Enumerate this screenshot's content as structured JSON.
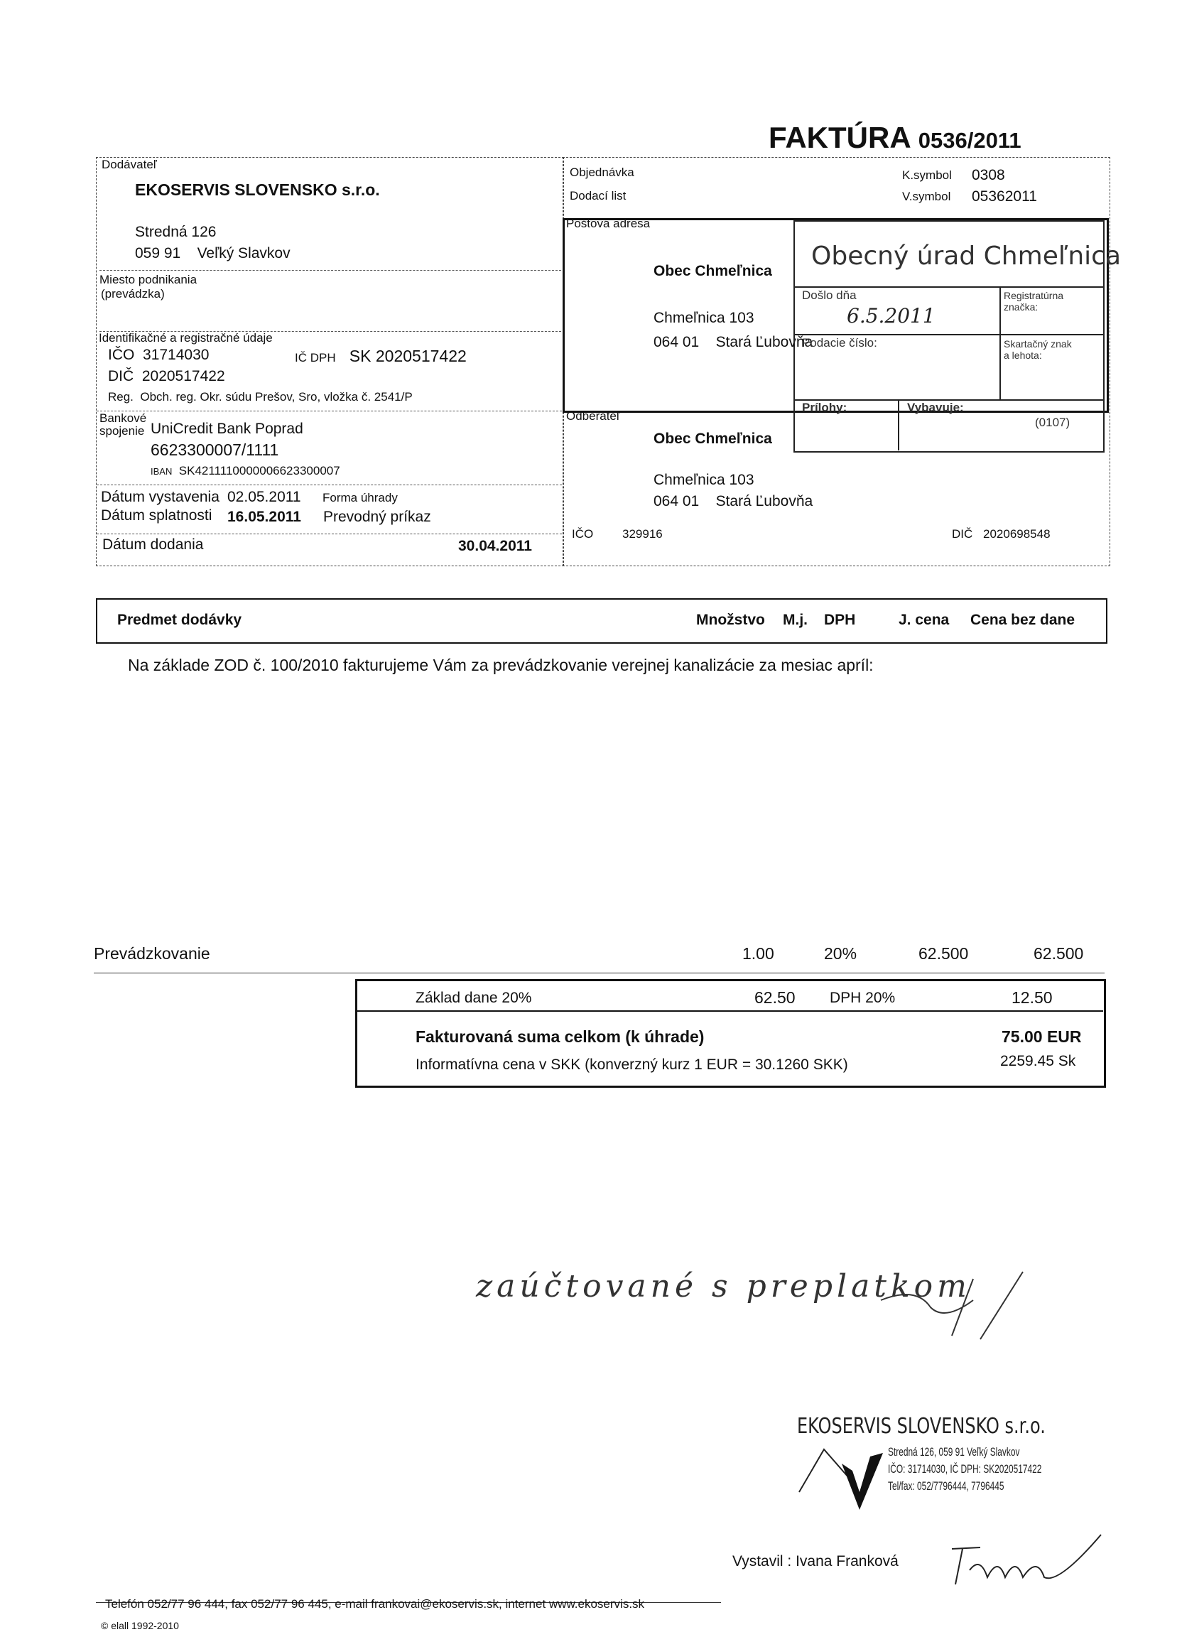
{
  "title": {
    "label": "FAKTÚRA",
    "number": "0536/2011"
  },
  "supplier": {
    "heading": "Dodávateľ",
    "name": "EKOSERVIS SLOVENSKO s.r.o.",
    "street": "Stredná 126",
    "zip": "059 91",
    "city": "Veľký Slavkov",
    "place_label1": "Miesto podnikania",
    "place_label2": "(prevádzka)",
    "id_heading": "Identifikačné a registračné údaje",
    "ico_label": "IČO",
    "ico": "31714030",
    "icdph_label": "IČ DPH",
    "icdph": "SK 2020517422",
    "dic_label": "DIČ",
    "dic": "2020517422",
    "reg_label": "Reg.",
    "reg": "Obch. reg. Okr. súdu Prešov, Sro, vložka č. 2541/P",
    "bank_label1": "Bankové",
    "bank_label2": "spojenie",
    "bank": "UniCredit Bank Poprad",
    "account": "6623300007/1111",
    "iban_label": "IBAN",
    "iban": "SK4211110000006623300007"
  },
  "dates": {
    "issue_label": "Dátum vystavenia",
    "issue": "02.05.2011",
    "due_label": "Dátum splatnosti",
    "due": "16.05.2011",
    "payment_label": "Forma úhrady",
    "payment": "Prevodný príkaz",
    "delivery_label": "Dátum dodania",
    "delivery": "30.04.2011"
  },
  "order": {
    "order_label": "Objednávka",
    "delivery_note_label": "Dodací list",
    "ksymbol_label": "K.symbol",
    "ksymbol": "0308",
    "vsymbol_label": "V.symbol",
    "vsymbol": "05362011"
  },
  "postal": {
    "heading": "Poštová adresa",
    "name": "Obec Chmeľnica",
    "street": "Chmeľnica 103",
    "zip": "064 01",
    "city": "Stará Ľubovňa"
  },
  "stamp": {
    "title": "Obecný úrad Chmeľnica",
    "received_label": "Došlo dňa",
    "received": "6.5.2011",
    "reg_label1": "Registratúrna",
    "reg_label2": "značka:",
    "filing_label": "Podacie číslo:",
    "shred_label1": "Skartačný znak",
    "shred_label2": "a lehota:",
    "attachments_label": "Prílohy:",
    "handles_label": "Vybavuje:",
    "code": "(0107)"
  },
  "customer": {
    "heading": "Odberateľ",
    "name": "Obec Chmeľnica",
    "street": "Chmeľnica 103",
    "zip": "064 01",
    "city": "Stará Ľubovňa",
    "ico_label": "IČO",
    "ico": "329916",
    "dic_label": "DIČ",
    "dic": "2020698548"
  },
  "items_header": {
    "subject": "Predmet dodávky",
    "qty": "Množstvo",
    "unit": "M.j.",
    "vat": "DPH",
    "price": "J. cena",
    "total": "Cena bez dane"
  },
  "description": "Na základe ZOD č. 100/2010 fakturujeme Vám za prevádzkovanie verejnej kanalizácie za mesiac apríl:",
  "items": [
    {
      "name": "Prevádzkovanie",
      "qty": "1.00",
      "vat": "20%",
      "price": "62.500",
      "total": "62.500"
    }
  ],
  "totals": {
    "base_label": "Základ dane 20%",
    "base": "62.50",
    "vat_label": "DPH 20%",
    "vat": "12.50",
    "sum_label": "Fakturovaná suma celkom (k úhrade)",
    "sum": "75.00",
    "currency": "EUR",
    "skk_label": "Informatívna cena v SKK (konverzný kurz 1 EUR = 30.1260 SKK)",
    "skk": "2259.45",
    "skk_unit": "Sk"
  },
  "handwritten_note": "zaúčtované s preplatkom",
  "company_stamp": {
    "name": "EKOSERVIS SLOVENSKO s.r.o.",
    "line1": "Stredná 126, 059 91 Veľký Slavkov",
    "line2": "IČO: 31714030, IČ DPH: SK2020517422",
    "line3": "Tel/fax: 052/7796444, 7796445"
  },
  "issuer": {
    "label": "Vystavil :",
    "name": "Ivana Franková"
  },
  "footer": {
    "contact": "Telefón 052/77 96 444, fax 052/77 96 445, e-mail frankovai@ekoservis.sk, internet www.ekoservis.sk",
    "copyright": "© elall 1992-2010"
  }
}
